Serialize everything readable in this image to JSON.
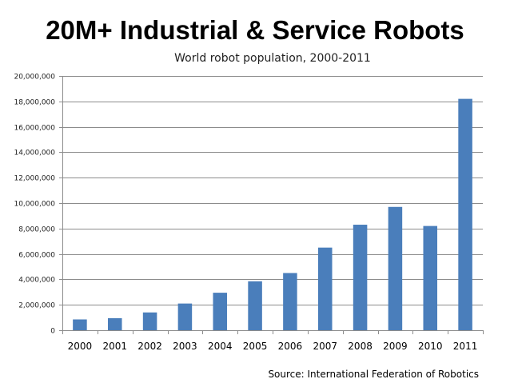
{
  "slide": {
    "title": "20M+ Industrial & Service Robots"
  },
  "colors": {
    "bar": "#4a7ebb",
    "grid": "#8c8c8c",
    "axis": "#8c8c8c"
  },
  "chart_data": {
    "type": "bar",
    "title": "World robot population, 2000-2011",
    "xlabel": "",
    "ylabel": "",
    "categories": [
      "2000",
      "2001",
      "2002",
      "2003",
      "2004",
      "2005",
      "2006",
      "2007",
      "2008",
      "2009",
      "2010",
      "2011"
    ],
    "values": [
      850000,
      950000,
      1400000,
      2100000,
      2950000,
      3850000,
      4500000,
      6500000,
      8300000,
      9700000,
      8200000,
      18200000
    ],
    "ylim": [
      0,
      20000000
    ],
    "yticks": [
      0,
      2000000,
      4000000,
      6000000,
      8000000,
      10000000,
      12000000,
      14000000,
      16000000,
      18000000,
      20000000
    ],
    "ytick_labels": [
      "0",
      "2,000,000",
      "4,000,000",
      "6,000,000",
      "8,000,000",
      "10,000,000",
      "12,000,000",
      "14,000,000",
      "16,000,000",
      "18,000,000",
      "20,000,000"
    ],
    "grid": true,
    "legend": "none",
    "source": "Source: International Federation of Robotics"
  }
}
